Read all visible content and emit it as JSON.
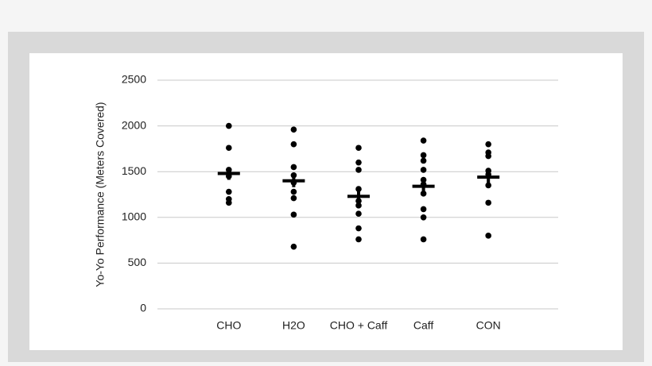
{
  "chart_data": {
    "type": "dot",
    "y_label": "Yo-Yo Performance (Meters Covered)",
    "categories": [
      "CHO",
      "H2O",
      "CHO + Caff",
      "Caff",
      "CON"
    ],
    "points": [
      [
        2000,
        1760,
        1520,
        1480,
        1450,
        1280,
        1200,
        1160
      ],
      [
        1960,
        1800,
        1550,
        1460,
        1380,
        1280,
        1210,
        1030,
        680
      ],
      [
        1760,
        1600,
        1520,
        1310,
        1180,
        1130,
        1040,
        880,
        760
      ],
      [
        1840,
        1680,
        1620,
        1520,
        1410,
        1360,
        1260,
        1090,
        1000,
        760
      ],
      [
        1800,
        1710,
        1670,
        1510,
        1470,
        1350,
        1160,
        800
      ]
    ],
    "means": [
      1480,
      1400,
      1230,
      1340,
      1440
    ],
    "color": "#000000",
    "ylim": [
      0,
      2500
    ],
    "yticks": [
      0,
      500,
      1000,
      1500,
      2000,
      2500
    ],
    "grid": true
  }
}
